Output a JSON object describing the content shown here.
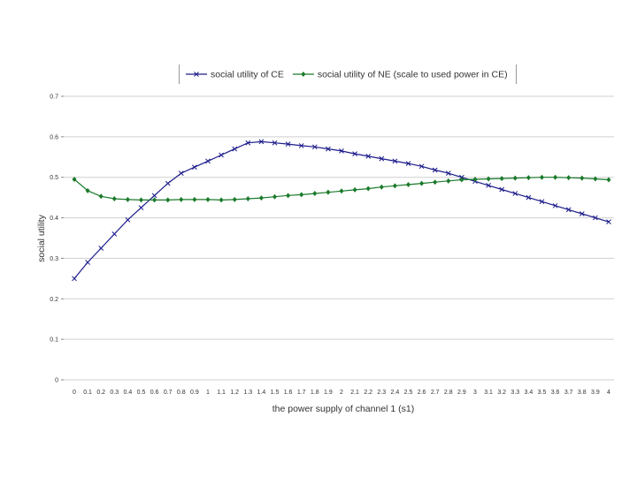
{
  "chart_data": {
    "type": "line",
    "title": "",
    "xlabel": "the power supply of channel 1 (s1)",
    "ylabel": "social utility",
    "ylim": [
      0,
      0.7
    ],
    "yticks": [
      "0",
      "0.1",
      "0.2",
      "0.3",
      "0.4",
      "0.5",
      "0.6",
      "0.7"
    ],
    "grid": "horizontal",
    "legend_position": "top",
    "categories": [
      "0",
      "0.1",
      "0.2",
      "0.3",
      "0.4",
      "0.5",
      "0.6",
      "0.7",
      "0.8",
      "0.9",
      "1",
      "1.1",
      "1.2",
      "1.3",
      "1.4",
      "1.5",
      "1.6",
      "1.7",
      "1.8",
      "1.9",
      "2",
      "2.1",
      "2.2",
      "2.3",
      "2.4",
      "2.5",
      "2.6",
      "2.7",
      "2.8",
      "2.9",
      "3",
      "3.1",
      "3.2",
      "3.3",
      "3.4",
      "3.5",
      "3.6",
      "3.7",
      "3.8",
      "3.9",
      "4"
    ],
    "series": [
      {
        "name": "social utility of CE",
        "color": "#1c1c8c",
        "marker": "x",
        "values": [
          0.25,
          0.29,
          0.325,
          0.36,
          0.395,
          0.425,
          0.455,
          0.485,
          0.51,
          0.525,
          0.54,
          0.555,
          0.57,
          0.585,
          0.588,
          0.585,
          0.582,
          0.578,
          0.575,
          0.57,
          0.565,
          0.558,
          0.552,
          0.546,
          0.54,
          0.534,
          0.527,
          0.518,
          0.51,
          0.5,
          0.49,
          0.48,
          0.47,
          0.46,
          0.45,
          0.44,
          0.43,
          0.42,
          0.41,
          0.4,
          0.39
        ]
      },
      {
        "name": "social utility of NE (scale to used power in CE)",
        "color": "#1a7a2a",
        "marker": "diamond",
        "values": [
          0.495,
          0.467,
          0.453,
          0.447,
          0.445,
          0.444,
          0.444,
          0.444,
          0.445,
          0.445,
          0.445,
          0.444,
          0.445,
          0.447,
          0.449,
          0.452,
          0.455,
          0.457,
          0.46,
          0.463,
          0.466,
          0.469,
          0.472,
          0.476,
          0.479,
          0.482,
          0.485,
          0.488,
          0.491,
          0.494,
          0.495,
          0.496,
          0.497,
          0.498,
          0.499,
          0.5,
          0.5,
          0.499,
          0.498,
          0.496,
          0.494
        ]
      }
    ]
  }
}
